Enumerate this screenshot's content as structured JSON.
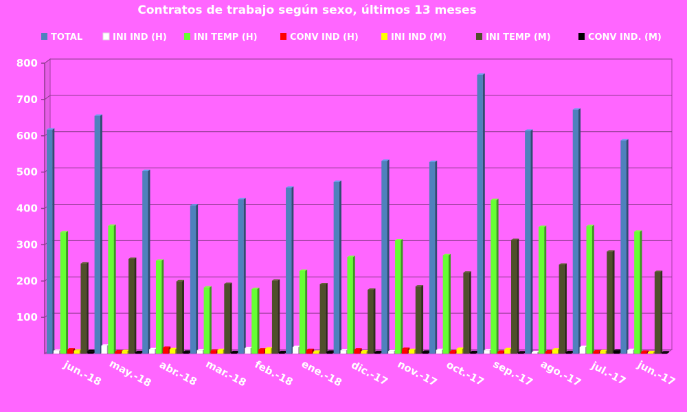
{
  "chart_data": {
    "type": "bar",
    "title": "Contratos de trabajo según sexo, últimos 13 meses",
    "xlabel": "",
    "ylabel": "",
    "ylim": [
      0,
      800
    ],
    "yticks": [
      "100",
      "200",
      "300",
      "400",
      "500",
      "600",
      "700",
      "800"
    ],
    "grid": true,
    "legend_position": "top",
    "categories": [
      "jun.-18",
      "may.-18",
      "abr.-18",
      "mar.-18",
      "feb.-18",
      "ene.-18",
      "dic.-17",
      "nov.-17",
      "oct.-17",
      "sep.-17",
      "ago.-17",
      "jul.-17",
      "jun.-17"
    ],
    "series": [
      {
        "name": "TOTAL",
        "color": "#4f81bd",
        "values": [
          617,
          655,
          503,
          408,
          425,
          457,
          473,
          531,
          528,
          768,
          614,
          672,
          587
        ]
      },
      {
        "name": "INI IND (H)",
        "color": "#ffffff",
        "values": [
          8,
          22,
          12,
          9,
          15,
          18,
          9,
          7,
          10,
          9,
          4,
          18,
          10
        ]
      },
      {
        "name": "INI TEMP (H)",
        "color": "#66ff33",
        "values": [
          334,
          352,
          256,
          182,
          178,
          228,
          266,
          312,
          271,
          423,
          349,
          351,
          336
        ]
      },
      {
        "name": "CONV IND (H)",
        "color": "#ff0000",
        "values": [
          11,
          6,
          16,
          8,
          11,
          10,
          11,
          13,
          6,
          5,
          6,
          6,
          5
        ]
      },
      {
        "name": "INI IND (M)",
        "color": "#ffff00",
        "values": [
          8,
          7,
          12,
          10,
          14,
          5,
          6,
          10,
          13,
          12,
          11,
          7,
          4
        ]
      },
      {
        "name": "INI TEMP  (M)",
        "color": "#4f4f2b",
        "values": [
          248,
          261,
          199,
          192,
          201,
          191,
          176,
          185,
          223,
          313,
          245,
          281,
          225
        ]
      },
      {
        "name": "CONV IND.  (M)",
        "color": "#000000",
        "values": [
          7,
          4,
          5,
          4,
          4,
          5,
          4,
          5,
          4,
          3,
          4,
          8,
          3
        ]
      }
    ]
  }
}
